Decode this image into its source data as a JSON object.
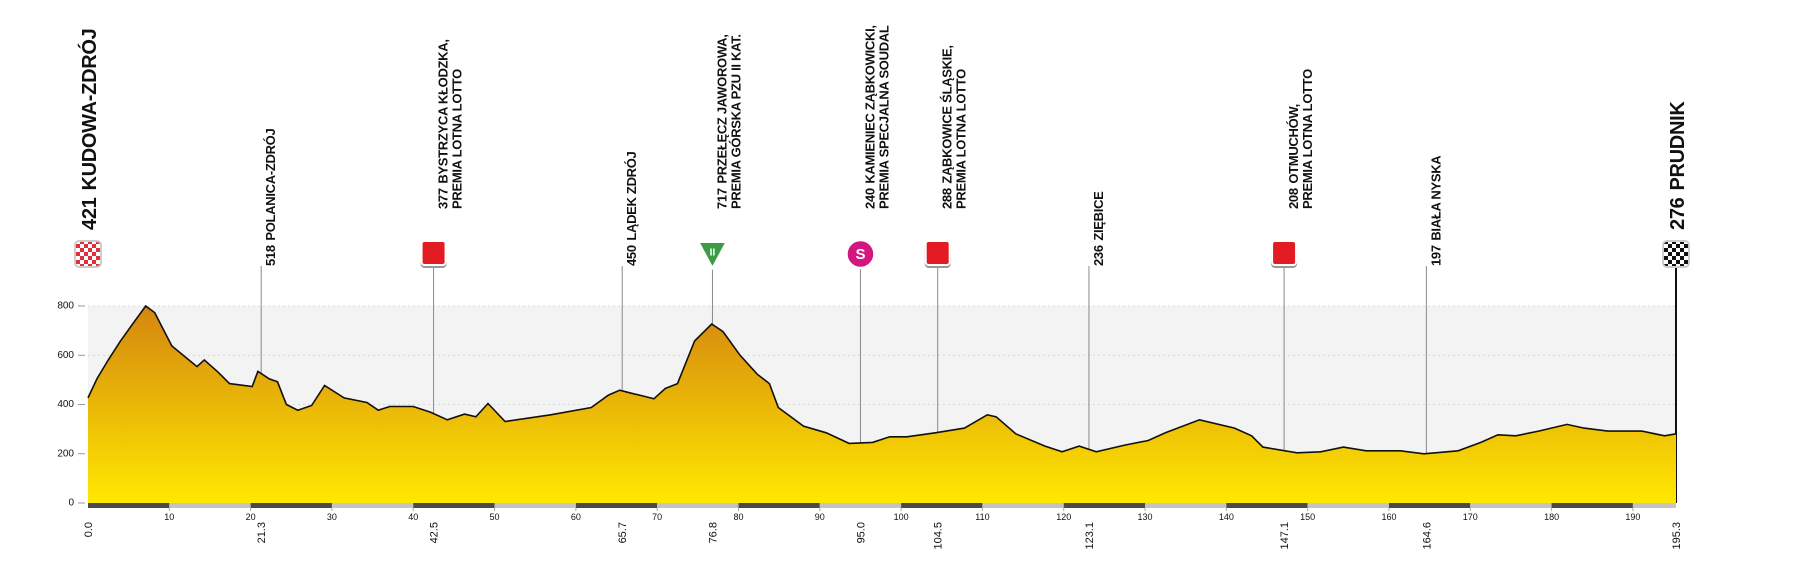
{
  "chart_data": {
    "type": "area",
    "xlim": [
      0,
      195.3
    ],
    "xticks": [
      10,
      20,
      30,
      40,
      50,
      60,
      70,
      80,
      90,
      100,
      110,
      120,
      130,
      140,
      150,
      160,
      170,
      180,
      190
    ],
    "ylim": [
      0,
      800
    ],
    "yticks": [
      0,
      200,
      400,
      600,
      800
    ],
    "grid": true,
    "x": [
      0,
      1.1,
      2.5,
      4.0,
      5.4,
      7.1,
      8.2,
      10.3,
      12.4,
      13.4,
      14.3,
      16.0,
      17.4,
      20.2,
      20.9,
      22.3,
      23.3,
      24.4,
      25.8,
      27.5,
      29.1,
      31.5,
      34.3,
      35.7,
      37.1,
      40.0,
      42.1,
      44.2,
      46.3,
      47.7,
      49.2,
      51.3,
      56.9,
      61.9,
      64.0,
      65.4,
      66.8,
      68.2,
      69.6,
      71.0,
      72.5,
      74.6,
      76.7,
      78.1,
      80.2,
      82.3,
      83.8,
      84.9,
      88.0,
      90.8,
      93.6,
      96.5,
      98.6,
      100.7,
      104.2,
      107.8,
      110.6,
      111.7,
      114.1,
      117.7,
      119.8,
      121.9,
      124.0,
      127.5,
      130.4,
      132.5,
      136.7,
      141.0,
      143.1,
      144.5,
      148.7,
      151.6,
      154.4,
      157.2,
      161.4,
      164.3,
      168.5,
      171.3,
      173.4,
      175.6,
      178.4,
      181.9,
      184.0,
      186.9,
      191.1,
      193.9,
      195.3
    ],
    "values": [
      427,
      504,
      581,
      658,
      723,
      800,
      773,
      638,
      581,
      554,
      581,
      531,
      485,
      473,
      535,
      504,
      492,
      400,
      377,
      396,
      477,
      427,
      408,
      377,
      392,
      392,
      369,
      338,
      361,
      350,
      404,
      331,
      358,
      388,
      438,
      458,
      446,
      435,
      423,
      465,
      485,
      658,
      727,
      696,
      600,
      523,
      485,
      388,
      312,
      285,
      242,
      246,
      269,
      269,
      285,
      304,
      358,
      350,
      281,
      231,
      208,
      231,
      208,
      235,
      254,
      285,
      338,
      304,
      273,
      227,
      204,
      208,
      227,
      212,
      212,
      200,
      212,
      246,
      277,
      273,
      292,
      319,
      304,
      292,
      292,
      273,
      281
    ],
    "color_top": "#d4860f",
    "color_bottom": "#ffe800",
    "waypoints": [
      {
        "km": {
          "value": 0,
          "label": "0.0"
        },
        "elevation": 421,
        "name": "KUDOWA-ZDRÓJ",
        "marker": "start"
      },
      {
        "km": 21.3,
        "elevation": 518,
        "name": "POLANICA-ZDRÓJ",
        "marker": "none"
      },
      {
        "km": 42.5,
        "elevation": 377,
        "name": "BYSTRZYCA KŁODZKA,",
        "note": "PREMIA LOTNA LOTTO",
        "marker": "sprint"
      },
      {
        "km": 65.7,
        "elevation": 450,
        "name": "LĄDEK ZDRÓJ",
        "marker": "none"
      },
      {
        "km": 76.8,
        "elevation": 717,
        "name": "PRZEŁĘCZ JAWOROWA,",
        "note": "PREMIA GÓRSKA PZU II KAT.",
        "marker": "mountain",
        "marker_label": "II"
      },
      {
        "km": {
          "value": 95,
          "label": "95.0"
        },
        "elevation": 240,
        "name": "KAMIENIEC ZĄBKOWICKI,",
        "note": "PREMIA SPECJALNA SOUDAL",
        "marker": "special",
        "marker_label": "S"
      },
      {
        "km": 104.5,
        "elevation": 288,
        "name": "ZĄBKOWICE ŚLĄSKIE,",
        "note": "PREMIA LOTNA LOTTO",
        "marker": "sprint"
      },
      {
        "km": 123.1,
        "elevation": 236,
        "name": "ZIĘBICE",
        "marker": "none"
      },
      {
        "km": 147.1,
        "elevation": 208,
        "name": "OTMUCHÓW,",
        "note": "PREMIA LOTNA LOTTO",
        "marker": "sprint"
      },
      {
        "km": 164.6,
        "elevation": 197,
        "name": "BIAŁA NYSKA",
        "marker": "none"
      },
      {
        "km": 195.3,
        "elevation": 276,
        "name": "PRUDNIK",
        "marker": "finish"
      }
    ]
  }
}
